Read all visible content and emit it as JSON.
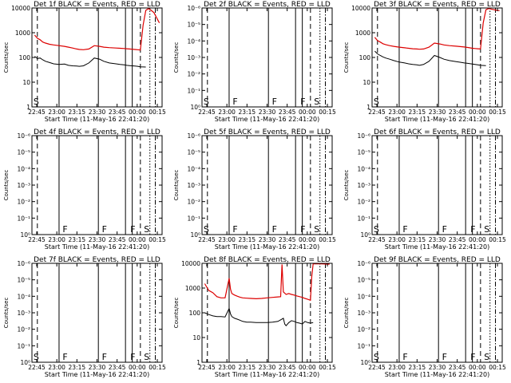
{
  "chart_data": [
    {
      "type": "line",
      "title": "Det 1f BLACK = Events, RED = LLD",
      "xlabel": "Start Time (11-May-16 22:41:20)",
      "ylabel": "Counts/sec",
      "yscale": "log",
      "ylim": [
        1,
        10000
      ],
      "yticks": [
        "1",
        "10",
        "100",
        "1000",
        "10000"
      ],
      "xticks": [
        "22:45",
        "23:00",
        "23:15",
        "23:30",
        "23:45",
        "00:00",
        "00:15"
      ],
      "markers": [
        {
          "label": "S",
          "x": 0.5
        }
      ],
      "series": [
        {
          "name": "Events",
          "color": "#000000",
          "x": [
            2,
            4,
            6,
            8,
            10,
            13,
            16,
            20,
            24,
            27,
            30,
            33,
            35,
            38,
            42,
            46,
            50,
            53,
            57,
            62,
            65,
            68,
            70,
            72,
            74,
            76,
            78,
            80,
            84
          ],
          "y": [
            110,
            90,
            95,
            80,
            70,
            62,
            55,
            52,
            54,
            48,
            46,
            45,
            44,
            46,
            60,
            95,
            85,
            70,
            60,
            55,
            52,
            50,
            48,
            47,
            46,
            45,
            44,
            42,
            41
          ]
        },
        {
          "name": "LLD",
          "color": "#dd0000",
          "x": [
            2,
            4,
            6,
            8,
            10,
            13,
            16,
            20,
            24,
            27,
            30,
            33,
            35,
            38,
            42,
            46,
            50,
            53,
            57,
            62,
            65,
            68,
            70,
            72,
            74,
            76,
            78,
            80,
            82,
            84,
            86,
            88,
            90,
            92,
            94
          ],
          "y": [
            800,
            600,
            520,
            420,
            380,
            340,
            320,
            300,
            280,
            260,
            240,
            220,
            210,
            205,
            220,
            300,
            280,
            260,
            250,
            240,
            235,
            230,
            225,
            220,
            215,
            210,
            205,
            200,
            2000,
            8000,
            9500,
            8000,
            6500,
            4000,
            2500
          ]
        }
      ]
    },
    {
      "type": "line",
      "title": "Det 2f BLACK = Events, RED = LLD",
      "xlabel": "Start Time (11-May-16 22:41:20)",
      "ylabel": "Counts/sec",
      "yscale": "log",
      "ylim": [
        1,
        10000
      ],
      "yticks": [
        "10⁰",
        "10⁻¹",
        "10⁻²",
        "10⁻³",
        "10⁻⁴",
        "10⁻⁵",
        "10⁻⁶"
      ],
      "xticks": [
        "22:45",
        "23:00",
        "23:15",
        "23:30",
        "23:45",
        "00:00",
        "00:15"
      ],
      "markers": [
        {
          "label": "S",
          "x": 0.5
        },
        {
          "label": "F",
          "x": 22
        },
        {
          "label": "F",
          "x": 51
        },
        {
          "label": "F",
          "x": 72
        },
        {
          "label": "S",
          "x": 82
        }
      ],
      "series": []
    },
    {
      "type": "line",
      "title": "Det 3f BLACK = Events, RED = LLD",
      "xlabel": "Start Time (11-May-16 22:41:20)",
      "ylabel": "Counts/sec",
      "yscale": "log",
      "ylim": [
        1,
        10000
      ],
      "yticks": [
        "1",
        "10",
        "100",
        "1000",
        "10000"
      ],
      "xticks": [
        "22:45",
        "23:00",
        "23:15",
        "23:30",
        "23:45",
        "00:00",
        "00:15"
      ],
      "markers": [
        {
          "label": "S",
          "x": 0.5
        }
      ],
      "series": [
        {
          "name": "Events",
          "color": "#000000",
          "x": [
            2,
            4,
            6,
            8,
            10,
            13,
            16,
            20,
            24,
            27,
            30,
            33,
            35,
            38,
            42,
            46,
            50,
            53,
            57,
            62,
            65,
            68,
            70,
            72,
            74,
            76,
            78,
            80,
            84
          ],
          "y": [
            180,
            140,
            120,
            105,
            95,
            85,
            75,
            65,
            60,
            55,
            52,
            50,
            48,
            52,
            70,
            120,
            100,
            85,
            75,
            68,
            64,
            60,
            58,
            56,
            54,
            52,
            50,
            48,
            47
          ]
        },
        {
          "name": "LLD",
          "color": "#dd0000",
          "x": [
            2,
            4,
            6,
            8,
            10,
            13,
            16,
            20,
            24,
            27,
            30,
            33,
            35,
            38,
            42,
            46,
            50,
            53,
            57,
            62,
            65,
            68,
            70,
            72,
            74,
            76,
            78,
            80,
            82,
            84,
            86,
            88,
            90,
            92,
            94
          ],
          "y": [
            650,
            480,
            420,
            360,
            330,
            300,
            280,
            260,
            245,
            235,
            225,
            220,
            215,
            220,
            260,
            380,
            350,
            320,
            300,
            285,
            275,
            265,
            255,
            245,
            235,
            230,
            225,
            220,
            2500,
            8500,
            9500,
            9000,
            8500,
            8000,
            7800
          ]
        }
      ]
    },
    {
      "type": "line",
      "title": "Det 4f BLACK = Events, RED = LLD",
      "xlabel": "Start Time (11-May-16 22:41:20)",
      "ylabel": "Counts/sec",
      "yscale": "log",
      "ylim": [
        1,
        10000
      ],
      "yticks": [
        "10⁰",
        "10⁻¹",
        "10⁻²",
        "10⁻³",
        "10⁻⁴",
        "10⁻⁵",
        "10⁻⁶"
      ],
      "xticks": [
        "22:45",
        "23:00",
        "23:15",
        "23:30",
        "23:45",
        "00:00",
        "00:15"
      ],
      "markers": [
        {
          "label": "F",
          "x": 22
        },
        {
          "label": "F",
          "x": 51
        },
        {
          "label": "F",
          "x": 72
        },
        {
          "label": "S",
          "x": 82
        }
      ],
      "series": []
    },
    {
      "type": "line",
      "title": "Det 5f BLACK = Events, RED = LLD",
      "xlabel": "Start Time (11-May-16 22:41:20)",
      "ylabel": "Counts/sec",
      "yscale": "log",
      "ylim": [
        1,
        10000
      ],
      "yticks": [
        "10⁰",
        "10⁻¹",
        "10⁻²",
        "10⁻³",
        "10⁻⁴",
        "10⁻⁵",
        "10⁻⁶"
      ],
      "xticks": [
        "22:45",
        "23:00",
        "23:15",
        "23:30",
        "23:45",
        "00:00",
        "00:15"
      ],
      "markers": [
        {
          "label": "S",
          "x": 0.5
        },
        {
          "label": "F",
          "x": 22
        },
        {
          "label": "F",
          "x": 51
        },
        {
          "label": "F",
          "x": 72
        },
        {
          "label": "S",
          "x": 82
        }
      ],
      "series": []
    },
    {
      "type": "line",
      "title": "Det 6f BLACK = Events, RED = LLD",
      "xlabel": "Start Time (11-May-16 22:41:20)",
      "ylabel": "Counts/sec",
      "yscale": "log",
      "ylim": [
        1,
        10000
      ],
      "yticks": [
        "10⁰",
        "10⁻¹",
        "10⁻²",
        "10⁻³",
        "10⁻⁴",
        "10⁻⁵",
        "10⁻⁶"
      ],
      "xticks": [
        "22:45",
        "23:00",
        "23:15",
        "23:30",
        "23:45",
        "00:00",
        "00:15"
      ],
      "markers": [
        {
          "label": "S",
          "x": 0.5
        },
        {
          "label": "F",
          "x": 22
        },
        {
          "label": "F",
          "x": 51
        },
        {
          "label": "F",
          "x": 72
        },
        {
          "label": "S",
          "x": 82
        }
      ],
      "series": []
    },
    {
      "type": "line",
      "title": "Det 7f BLACK = Events, RED = LLD",
      "xlabel": "Start Time (11-May-16 22:41:20)",
      "ylabel": "Counts/sec",
      "yscale": "log",
      "ylim": [
        1,
        10000
      ],
      "yticks": [
        "10⁰",
        "10⁻¹",
        "10⁻²",
        "10⁻³",
        "10⁻⁴",
        "10⁻⁵",
        "10⁻⁶"
      ],
      "xticks": [
        "22:45",
        "23:00",
        "23:15",
        "23:30",
        "23:45",
        "00:00",
        "00:15"
      ],
      "markers": [
        {
          "label": "S",
          "x": 0.5
        },
        {
          "label": "F",
          "x": 22
        },
        {
          "label": "F",
          "x": 51
        },
        {
          "label": "F",
          "x": 72
        },
        {
          "label": "S",
          "x": 82
        }
      ],
      "series": []
    },
    {
      "type": "line",
      "title": "Det 8f BLACK = Events, RED = LLD",
      "xlabel": "Start Time (11-May-16 22:41:20)",
      "ylabel": "Counts/sec",
      "yscale": "log",
      "ylim": [
        1,
        10000
      ],
      "yticks": [
        "1",
        "10",
        "100",
        "1000",
        "10000"
      ],
      "xticks": [
        "22:45",
        "23:00",
        "23:15",
        "23:30",
        "23:45",
        "00:00",
        "00:15"
      ],
      "markers": [],
      "series": [
        {
          "name": "Events",
          "color": "#000000",
          "x": [
            2,
            5,
            8,
            11,
            14,
            17,
            20,
            21,
            22,
            24,
            26,
            28,
            30,
            33,
            36,
            40,
            44,
            48,
            52,
            56,
            60,
            61,
            62,
            64,
            66,
            68,
            70,
            72,
            74,
            76,
            78,
            80,
            82
          ],
          "y": [
            100,
            85,
            75,
            70,
            70,
            68,
            150,
            90,
            70,
            60,
            55,
            50,
            45,
            42,
            42,
            40,
            40,
            40,
            42,
            45,
            60,
            35,
            30,
            40,
            48,
            45,
            40,
            38,
            35,
            45,
            40,
            38,
            40
          ]
        },
        {
          "name": "LLD",
          "color": "#dd0000",
          "x": [
            2,
            5,
            8,
            11,
            14,
            17,
            20,
            21,
            22,
            24,
            26,
            28,
            30,
            33,
            36,
            40,
            44,
            48,
            52,
            56,
            58,
            59,
            60,
            62,
            64,
            66,
            68,
            70,
            72,
            74,
            76,
            78,
            80,
            81,
            82,
            84,
            86,
            88,
            90,
            92,
            94
          ],
          "y": [
            1500,
            800,
            650,
            450,
            400,
            400,
            2500,
            900,
            600,
            520,
            470,
            430,
            400,
            390,
            380,
            370,
            380,
            400,
            420,
            440,
            450,
            9000,
            700,
            550,
            600,
            550,
            520,
            480,
            450,
            420,
            380,
            350,
            320,
            3000,
            9500,
            9500,
            9600,
            9500,
            9400,
            9300,
            9200
          ]
        }
      ]
    },
    {
      "type": "line",
      "title": "Det 9f BLACK = Events, RED = LLD",
      "xlabel": "Start Time (11-May-16 22:41:20)",
      "ylabel": "Counts/sec",
      "yscale": "log",
      "ylim": [
        1,
        10000
      ],
      "yticks": [
        "10⁰",
        "10⁻¹",
        "10⁻²",
        "10⁻³",
        "10⁻⁴",
        "10⁻⁵",
        "10⁻⁶"
      ],
      "xticks": [
        "22:45",
        "23:00",
        "23:15",
        "23:30",
        "23:45",
        "00:00",
        "00:15"
      ],
      "markers": [
        {
          "label": "S",
          "x": 0.5
        },
        {
          "label": "F",
          "x": 22
        },
        {
          "label": "F",
          "x": 51
        },
        {
          "label": "F",
          "x": 72
        },
        {
          "label": "S",
          "x": 82
        }
      ],
      "series": []
    }
  ],
  "vertical_lines": [
    {
      "x": 4,
      "style": "dash"
    },
    {
      "x": 20,
      "style": "solid"
    },
    {
      "x": 49,
      "style": "solid"
    },
    {
      "x": 69,
      "style": "solid"
    },
    {
      "x": 74,
      "style": "solid"
    },
    {
      "x": 80,
      "style": "dash"
    },
    {
      "x": 87,
      "style": "dot"
    },
    {
      "x": 91,
      "style": "dashdot"
    }
  ]
}
